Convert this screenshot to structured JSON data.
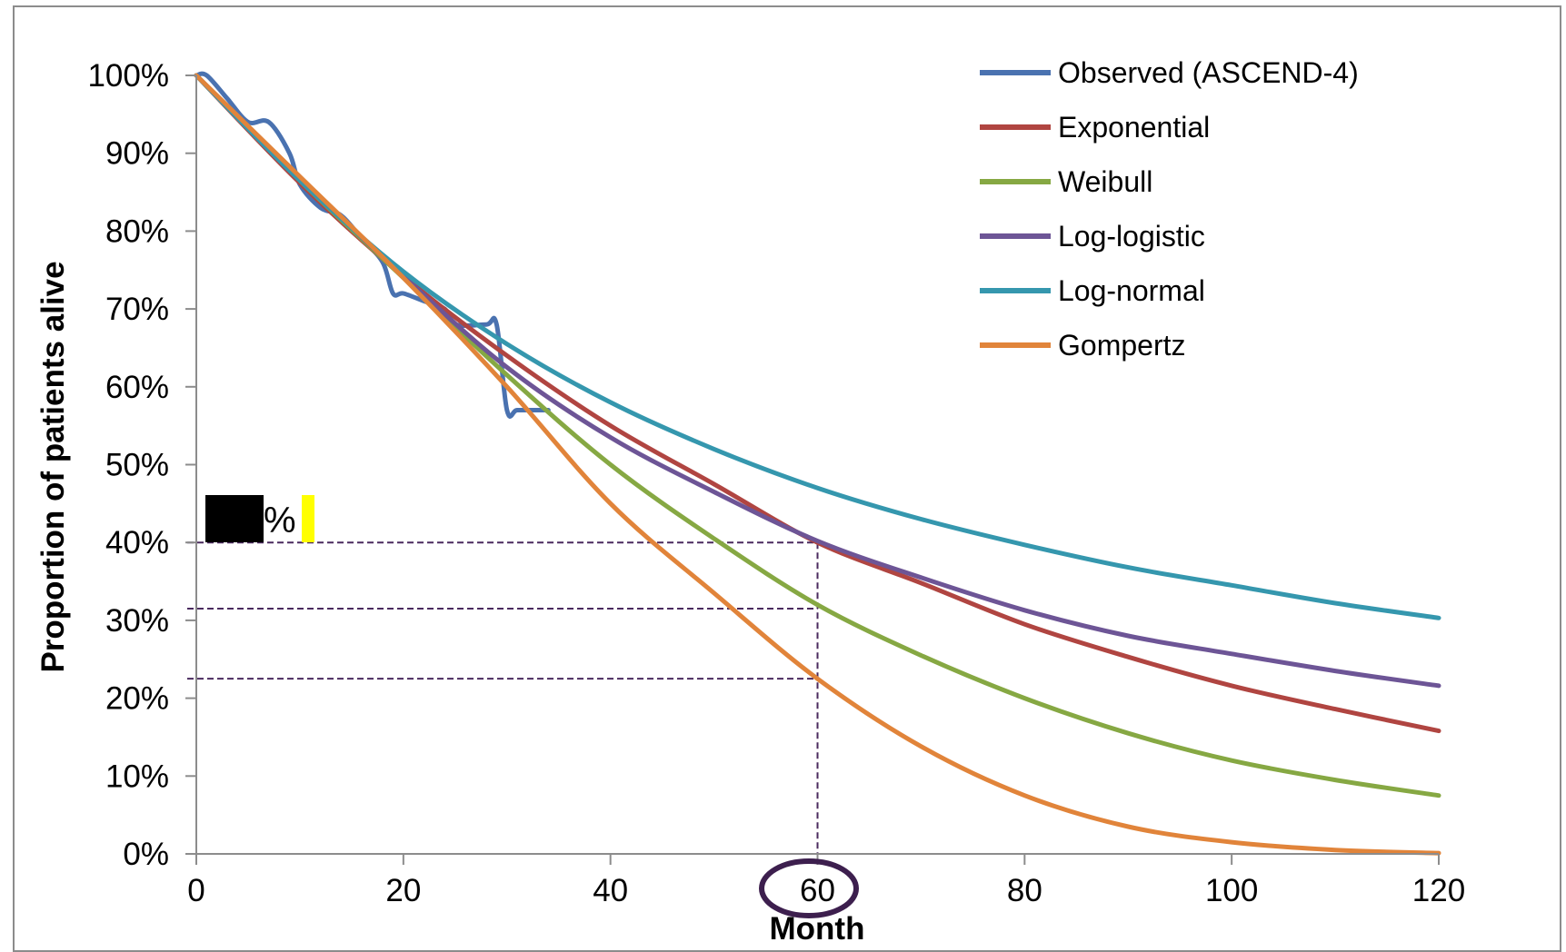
{
  "chart_data": {
    "type": "line",
    "xlabel": "Month",
    "ylabel": "Proportion of  patients alive",
    "xlim": [
      0,
      120
    ],
    "ylim": [
      0,
      100
    ],
    "x_ticks": [
      0,
      20,
      40,
      60,
      80,
      100,
      120
    ],
    "x_tick_labels": [
      "0",
      "20",
      "40",
      "60",
      "80",
      "100",
      "120"
    ],
    "y_ticks": [
      0,
      10,
      20,
      30,
      40,
      50,
      60,
      70,
      80,
      90,
      100
    ],
    "y_tick_labels": [
      "0%",
      "10%",
      "20%",
      "30%",
      "40%",
      "50%",
      "60%",
      "70%",
      "80%",
      "90%",
      "100%"
    ],
    "grid": false,
    "legend_position": "top-right",
    "series": [
      {
        "name": "Observed (ASCEND-4)",
        "color": "#4a72b0",
        "step": true,
        "x": [
          0,
          1,
          3,
          5,
          7,
          9,
          10,
          12,
          14,
          16,
          18,
          19,
          20,
          22,
          24,
          25,
          28,
          29,
          30,
          31,
          33,
          34
        ],
        "y": [
          100,
          100,
          97,
          94,
          94,
          90,
          86,
          83,
          82,
          79,
          76,
          72,
          72,
          71,
          70,
          68,
          68,
          68,
          57,
          57,
          57,
          57
        ]
      },
      {
        "name": "Exponential",
        "color": "#b04541",
        "x": [
          0,
          10,
          20,
          30,
          40,
          50,
          60,
          70,
          80,
          90,
          100,
          110,
          120
        ],
        "y": [
          100,
          86.2,
          74.2,
          64,
          55,
          47.5,
          40,
          34.8,
          29.5,
          25.3,
          21.6,
          18.6,
          15.8
        ]
      },
      {
        "name": "Weibull",
        "color": "#86a843",
        "x": [
          0,
          10,
          20,
          30,
          40,
          50,
          60,
          70,
          80,
          90,
          100,
          110,
          120
        ],
        "y": [
          100,
          86.5,
          74,
          61.5,
          50,
          40.5,
          32,
          25.5,
          20,
          15.5,
          12,
          9.5,
          7.5
        ]
      },
      {
        "name": "Log-logistic",
        "color": "#6d5596",
        "x": [
          0,
          10,
          20,
          30,
          40,
          50,
          60,
          70,
          80,
          90,
          100,
          110,
          120
        ],
        "y": [
          100,
          86.8,
          74.2,
          62.5,
          53.5,
          46.5,
          40.2,
          35.5,
          31.3,
          28,
          25.7,
          23.5,
          21.6
        ]
      },
      {
        "name": "Log-normal",
        "color": "#3597ae",
        "x": [
          0,
          10,
          20,
          30,
          40,
          50,
          60,
          70,
          80,
          90,
          100,
          110,
          120
        ],
        "y": [
          100,
          86.5,
          74.8,
          65.5,
          58,
          52,
          47,
          43,
          39.7,
          36.8,
          34.5,
          32.2,
          30.3
        ]
      },
      {
        "name": "Gompertz",
        "color": "#e1843a",
        "x": [
          0,
          10,
          20,
          30,
          40,
          50,
          60,
          70,
          80,
          90,
          100,
          110,
          120
        ],
        "y": [
          100,
          87,
          74,
          60,
          45,
          33.5,
          22.5,
          13.8,
          7.5,
          3.5,
          1.5,
          0.5,
          0.1
        ]
      }
    ],
    "reference_lines": {
      "color": "#4a2a5e",
      "x": 60,
      "y": [
        40,
        31.5,
        22.5
      ]
    },
    "annotation": {
      "text": "%",
      "redaction_color": "#000000",
      "highlight_color": "#ffff00",
      "circled_tick": "60",
      "circle_color": "#3d1f4e"
    }
  }
}
